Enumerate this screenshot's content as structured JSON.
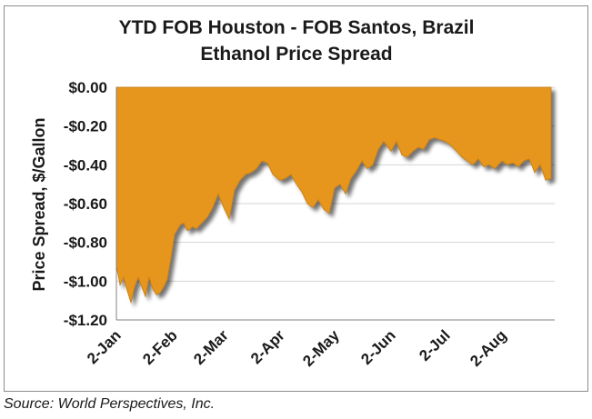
{
  "source_note": "Source: World Perspectives, Inc.",
  "chart_data": {
    "type": "area",
    "title_lines": [
      "YTD FOB Houston - FOB Santos, Brazil",
      "Ethanol Price Spread"
    ],
    "ylabel": "Price Spread, $/Gallon",
    "xlabel": "",
    "ylim": [
      -1.2,
      0.0
    ],
    "yticks": [
      0.0,
      -0.2,
      -0.4,
      -0.6,
      -0.8,
      -1.0,
      -1.2
    ],
    "ytick_labels": [
      "$0.00",
      "-$0.20",
      "-$0.40",
      "-$0.60",
      "-$0.80",
      "-$1.00",
      "-$1.20"
    ],
    "xticks": [
      "2-Jan",
      "2-Feb",
      "2-Mar",
      "2-Apr",
      "2-May",
      "2-Jun",
      "2-Jul",
      "2-Aug"
    ],
    "grid": true,
    "legend": "none",
    "fill_color": "#e6961e",
    "series": [
      {
        "x": [
          "2-Jan",
          "4-Jan",
          "6-Jan",
          "8-Jan",
          "10-Jan",
          "12-Jan",
          "14-Jan",
          "16-Jan",
          "18-Jan",
          "20-Jan",
          "22-Jan",
          "24-Jan",
          "26-Jan",
          "28-Jan",
          "30-Jan",
          "1-Feb",
          "3-Feb",
          "6-Feb",
          "8-Feb",
          "10-Feb",
          "13-Feb",
          "15-Feb",
          "18-Feb",
          "21-Feb",
          "24-Feb",
          "27-Feb",
          "2-Mar",
          "5-Mar",
          "8-Mar",
          "11-Mar",
          "14-Mar",
          "17-Mar",
          "20-Mar",
          "23-Mar",
          "26-Mar",
          "29-Mar",
          "2-Apr",
          "5-Apr",
          "8-Apr",
          "11-Apr",
          "14-Apr",
          "17-Apr",
          "20-Apr",
          "23-Apr",
          "26-Apr",
          "29-Apr",
          "2-May",
          "5-May",
          "8-May",
          "11-May",
          "14-May",
          "17-May",
          "20-May",
          "23-May",
          "26-May",
          "29-May",
          "2-Jun",
          "5-Jun",
          "8-Jun",
          "11-Jun",
          "14-Jun",
          "17-Jun",
          "20-Jun",
          "23-Jun",
          "26-Jun",
          "29-Jun",
          "2-Jul",
          "5-Jul",
          "8-Jul",
          "11-Jul",
          "14-Jul",
          "17-Jul",
          "20-Jul",
          "23-Jul",
          "26-Jul",
          "29-Jul",
          "2-Aug",
          "5-Aug",
          "8-Aug",
          "11-Aug",
          "14-Aug",
          "17-Aug",
          "20-Aug",
          "23-Aug",
          "26-Aug",
          "29-Aug"
        ],
        "values": [
          -0.92,
          -1.02,
          -0.98,
          -1.05,
          -1.11,
          -1.03,
          -0.98,
          -1.03,
          -1.08,
          -0.98,
          -1.04,
          -1.07,
          -1.06,
          -1.03,
          -0.99,
          -0.88,
          -0.76,
          -0.71,
          -0.7,
          -0.74,
          -0.72,
          -0.73,
          -0.7,
          -0.67,
          -0.62,
          -0.55,
          -0.62,
          -0.68,
          -0.53,
          -0.48,
          -0.45,
          -0.44,
          -0.42,
          -0.38,
          -0.39,
          -0.45,
          -0.48,
          -0.47,
          -0.45,
          -0.5,
          -0.54,
          -0.6,
          -0.62,
          -0.58,
          -0.63,
          -0.65,
          -0.52,
          -0.5,
          -0.55,
          -0.47,
          -0.43,
          -0.38,
          -0.42,
          -0.4,
          -0.32,
          -0.28,
          -0.33,
          -0.28,
          -0.35,
          -0.36,
          -0.33,
          -0.31,
          -0.32,
          -0.27,
          -0.26,
          -0.27,
          -0.28,
          -0.3,
          -0.33,
          -0.36,
          -0.38,
          -0.4,
          -0.37,
          -0.41,
          -0.4,
          -0.42,
          -0.38,
          -0.4,
          -0.39,
          -0.41,
          -0.38,
          -0.37,
          -0.44,
          -0.4,
          -0.48,
          -0.47
        ]
      }
    ]
  }
}
